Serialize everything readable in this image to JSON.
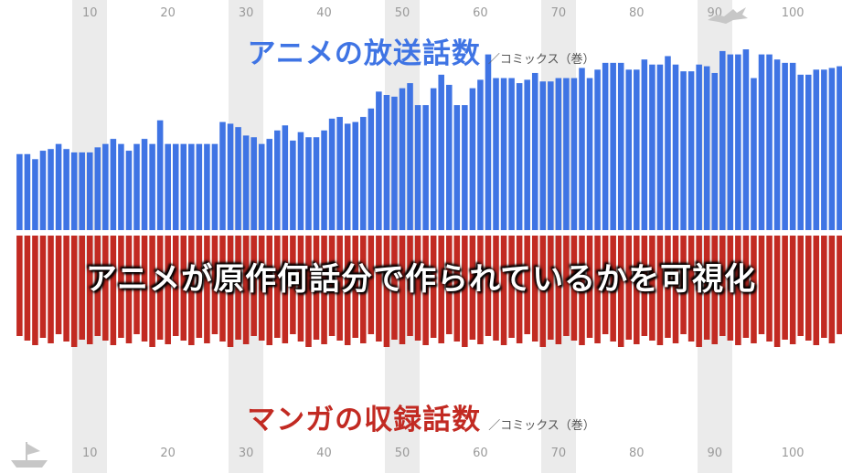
{
  "top_title": "アニメの放送話数",
  "top_subtitle": "／コミックス（巻）",
  "bottom_title": "マンガの収録話数",
  "bottom_subtitle": "／コミックス（巻）",
  "overlay_caption": "アニメが原作何話分で作られているかを可視化",
  "chart_data": {
    "type": "bar",
    "x_tick_labels": [
      "10",
      "20",
      "30",
      "40",
      "50",
      "60",
      "70",
      "80",
      "90",
      "100"
    ],
    "x_ticks": [
      10,
      20,
      30,
      40,
      50,
      60,
      70,
      80,
      90,
      100
    ],
    "x_range": [
      -1.5,
      106.3
    ],
    "top_series": {
      "name": "アニメの放送話数",
      "color": "#3f74e4",
      "values": [
        4.5,
        4.5,
        4.2,
        4.7,
        4.8,
        5.1,
        4.8,
        4.6,
        4.6,
        4.6,
        4.9,
        5.1,
        5.4,
        5.1,
        4.7,
        5.1,
        5.4,
        5.1,
        6.5,
        5.1,
        5.1,
        5.1,
        5.1,
        5.1,
        5.1,
        5.1,
        6.4,
        6.3,
        6.1,
        5.6,
        5.5,
        5.1,
        5.4,
        5.9,
        6.2,
        5.3,
        5.8,
        5.5,
        5.5,
        5.9,
        6.6,
        6.7,
        6.3,
        6.4,
        6.7,
        7.2,
        8.2,
        8.0,
        7.9,
        8.4,
        8.7,
        7.4,
        7.4,
        8.4,
        9.2,
        8.6,
        7.4,
        7.4,
        8.4,
        8.9,
        10.4,
        9.0,
        9.0,
        9.0,
        8.7,
        8.9,
        9.3,
        8.8,
        8.8,
        9.0,
        9.0,
        9.0,
        9.6,
        9.0,
        9.5,
        9.9,
        9.9,
        9.9,
        9.5,
        9.5,
        10.1,
        9.8,
        9.8,
        10.3,
        9.8,
        9.4,
        9.4,
        9.8,
        9.7,
        9.3,
        10.6,
        10.4,
        10.4,
        10.7,
        9.0,
        10.4,
        10.4,
        10.1,
        9.9,
        9.9,
        9.2,
        9.2,
        9.5,
        9.5,
        9.6,
        9.7,
        9.2
      ]
    },
    "bottom_series": {
      "name": "マンガの収録話数",
      "color": "#c22a22",
      "values": [
        10,
        10,
        10,
        10,
        10,
        10,
        10,
        10,
        10,
        10,
        10,
        10,
        10,
        10,
        10,
        10,
        10,
        10,
        10,
        10,
        10,
        10,
        10,
        10,
        10,
        10,
        10,
        10,
        10,
        10,
        10,
        10,
        10,
        10,
        10,
        10,
        10,
        10,
        10,
        10,
        10,
        10,
        10,
        10,
        10,
        10,
        10,
        10,
        10,
        10,
        10,
        10,
        10,
        10,
        10,
        10,
        10,
        10,
        10,
        10,
        10,
        10,
        10,
        10,
        10,
        10,
        10,
        10,
        10,
        10,
        10,
        10,
        10,
        10,
        10,
        10,
        10,
        10,
        10,
        10,
        10,
        10,
        10,
        10,
        10,
        10,
        10,
        10,
        10,
        10,
        10,
        10,
        10,
        10,
        10,
        10,
        10,
        10,
        10,
        10,
        10,
        10,
        10,
        10,
        10,
        10,
        10
      ]
    }
  }
}
